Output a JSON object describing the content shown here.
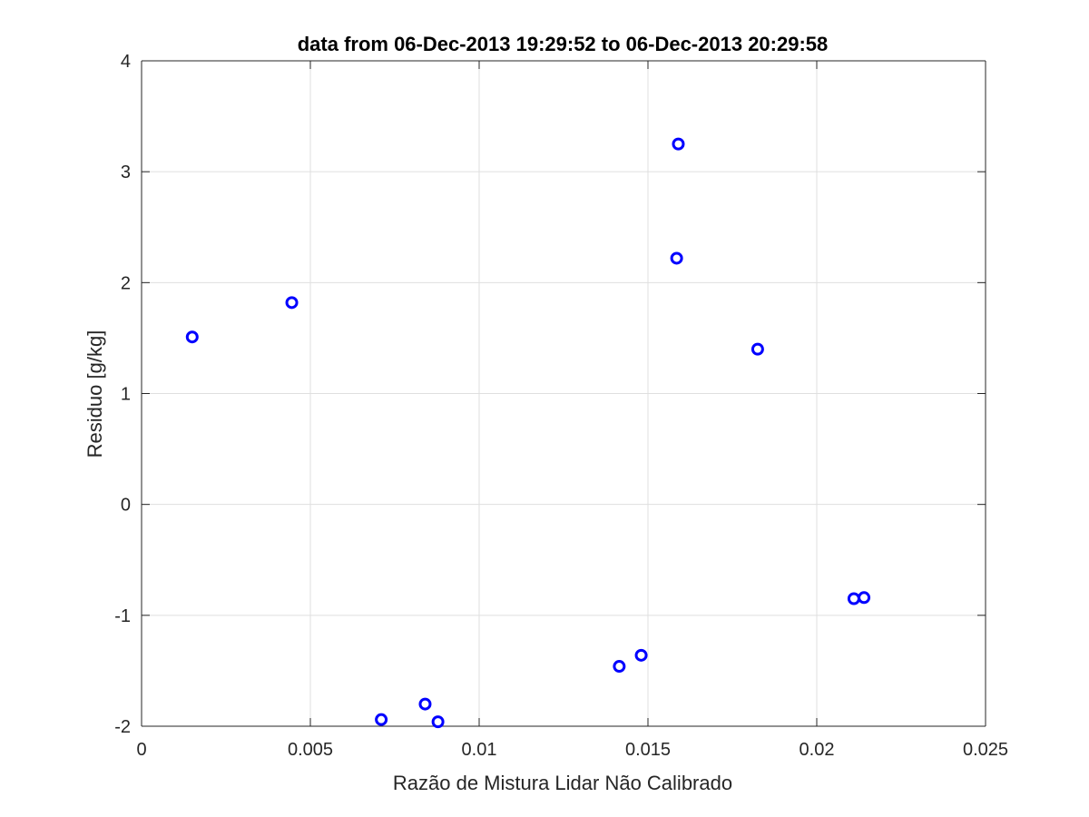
{
  "chart_data": {
    "type": "scatter",
    "title": "data from 06-Dec-2013 19:29:52 to 06-Dec-2013 20:29:58",
    "xlabel": "Razão de Mistura Lidar Não Calibrado",
    "ylabel": "Residuo [g/kg]",
    "xlim": [
      0,
      0.025
    ],
    "ylim": [
      -2,
      4
    ],
    "xticks": [
      0,
      0.005,
      0.01,
      0.015,
      0.02,
      0.025
    ],
    "xtick_labels": [
      "0",
      "0.005",
      "0.01",
      "0.015",
      "0.02",
      "0.025"
    ],
    "yticks": [
      -2,
      -1,
      0,
      1,
      2,
      3,
      4
    ],
    "ytick_labels": [
      "-2",
      "-1",
      "0",
      "1",
      "2",
      "3",
      "4"
    ],
    "grid": true,
    "marker": "circle",
    "color": "#0000ff",
    "series": [
      {
        "x": [
          0.0015,
          0.00445,
          0.0071,
          0.0084,
          0.00878,
          0.01415,
          0.0148,
          0.01585,
          0.0159,
          0.01825,
          0.0211,
          0.0214
        ],
        "y": [
          1.51,
          1.82,
          -1.94,
          -1.8,
          -1.96,
          -1.46,
          -1.36,
          2.22,
          3.25,
          1.4,
          -0.85,
          -0.84
        ]
      }
    ]
  }
}
